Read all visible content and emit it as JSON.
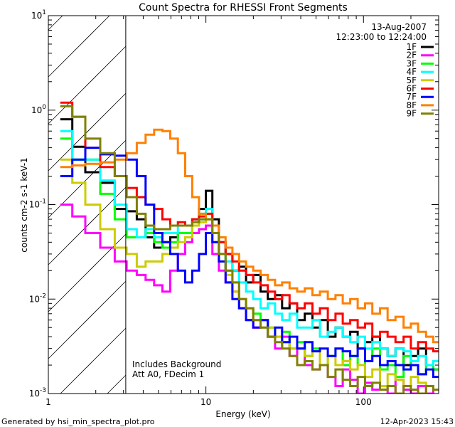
{
  "chart_data": {
    "type": "line",
    "title": "Count Spectra for RHESSI Front Segments",
    "xlabel": "Energy (keV)",
    "ylabel": "counts cm-2 s-1 keV-1",
    "xscale": "log",
    "yscale": "log",
    "xlim": [
      1,
      300
    ],
    "ylim": [
      0.001,
      10
    ],
    "x_tick_labels": [
      "1",
      "10",
      "100"
    ],
    "y_tick_labels": [
      "-3",
      "-2",
      "-1",
      "0",
      "1"
    ],
    "date": "13-Aug-2007",
    "time_range": "12:23:00 to 12:24:00",
    "annotations": [
      "Includes Background",
      "Att A0, FDecim 1"
    ],
    "excluded_region_max_keV": 3.1,
    "legend_placement": "top-right",
    "x": [
      1.3,
      1.55,
      1.9,
      2.4,
      2.9,
      3.4,
      3.9,
      4.4,
      5.0,
      5.6,
      6.3,
      7.0,
      7.8,
      8.6,
      9.5,
      10.5,
      11.5,
      12.7,
      14,
      15.5,
      17,
      19,
      21,
      23.5,
      26,
      29,
      32,
      36,
      40,
      45,
      50,
      56,
      63,
      70,
      78,
      87,
      97,
      108,
      120,
      135,
      150,
      170,
      190,
      210,
      235,
      265,
      290
    ],
    "series": [
      {
        "name": "1F",
        "color": "#000000",
        "values": [
          0.8,
          0.41,
          0.22,
          0.17,
          0.09,
          0.085,
          0.07,
          0.045,
          0.035,
          0.04,
          0.045,
          0.05,
          0.05,
          0.07,
          0.09,
          0.14,
          0.07,
          0.04,
          0.03,
          0.02,
          0.022,
          0.015,
          0.018,
          0.012,
          0.01,
          0.011,
          0.008,
          0.009,
          0.006,
          0.007,
          0.005,
          0.006,
          0.004,
          0.005,
          0.004,
          0.0045,
          0.003,
          0.0035,
          0.004,
          0.003,
          0.0025,
          0.003,
          0.002,
          0.0025,
          0.003,
          0.002,
          0.0018
        ]
      },
      {
        "name": "2F",
        "color": "#ff00ff",
        "values": [
          0.1,
          0.075,
          0.05,
          0.035,
          0.025,
          0.02,
          0.018,
          0.016,
          0.014,
          0.012,
          0.02,
          0.03,
          0.04,
          0.05,
          0.055,
          0.06,
          0.03,
          0.02,
          0.015,
          0.012,
          0.008,
          0.006,
          0.005,
          0.006,
          0.004,
          0.003,
          0.004,
          0.0025,
          0.003,
          0.002,
          0.0018,
          0.002,
          0.0015,
          0.0012,
          0.0018,
          0.0014,
          0.001,
          0.0013,
          0.0011,
          0.0012,
          0.001,
          0.0014,
          0.0011,
          0.001,
          0.0012,
          0.001,
          0.0011
        ]
      },
      {
        "name": "3F",
        "color": "#00ff00",
        "values": [
          0.5,
          0.3,
          0.3,
          0.13,
          0.07,
          0.045,
          0.045,
          0.05,
          0.04,
          0.035,
          0.04,
          0.05,
          0.05,
          0.06,
          0.07,
          0.08,
          0.05,
          0.03,
          0.02,
          0.015,
          0.01,
          0.008,
          0.007,
          0.006,
          0.005,
          0.004,
          0.0045,
          0.003,
          0.0035,
          0.0025,
          0.003,
          0.002,
          0.0025,
          0.003,
          0.002,
          0.0025,
          0.002,
          0.0022,
          0.003,
          0.0018,
          0.002,
          0.0015,
          0.0025,
          0.002,
          0.0016,
          0.002,
          0.0018
        ]
      },
      {
        "name": "4F",
        "color": "#00ffff",
        "values": [
          0.6,
          0.3,
          0.3,
          0.18,
          0.1,
          0.055,
          0.045,
          0.055,
          0.045,
          0.05,
          0.05,
          0.06,
          0.06,
          0.07,
          0.08,
          0.09,
          0.05,
          0.03,
          0.025,
          0.02,
          0.015,
          0.012,
          0.01,
          0.008,
          0.009,
          0.007,
          0.006,
          0.007,
          0.005,
          0.005,
          0.006,
          0.004,
          0.0045,
          0.005,
          0.004,
          0.0035,
          0.004,
          0.003,
          0.0035,
          0.003,
          0.0025,
          0.003,
          0.0028,
          0.0022,
          0.0025,
          0.002,
          0.0022
        ]
      },
      {
        "name": "5F",
        "color": "#cccc00",
        "values": [
          0.3,
          0.17,
          0.1,
          0.055,
          0.035,
          0.03,
          0.022,
          0.025,
          0.025,
          0.03,
          0.035,
          0.04,
          0.045,
          0.06,
          0.065,
          0.07,
          0.04,
          0.025,
          0.018,
          0.012,
          0.01,
          0.008,
          0.006,
          0.005,
          0.005,
          0.004,
          0.0035,
          0.003,
          0.003,
          0.0025,
          0.0028,
          0.002,
          0.0025,
          0.002,
          0.0022,
          0.0018,
          0.002,
          0.0015,
          0.0018,
          0.0012,
          0.0016,
          0.0014,
          0.0012,
          0.0015,
          0.0013,
          0.0012,
          0.0011
        ]
      },
      {
        "name": "6F",
        "color": "#ff0000",
        "values": [
          1.2,
          0.85,
          0.4,
          0.25,
          0.2,
          0.15,
          0.12,
          0.1,
          0.09,
          0.07,
          0.06,
          0.065,
          0.06,
          0.07,
          0.075,
          0.08,
          0.06,
          0.04,
          0.03,
          0.025,
          0.02,
          0.018,
          0.015,
          0.014,
          0.012,
          0.01,
          0.011,
          0.009,
          0.008,
          0.009,
          0.007,
          0.008,
          0.006,
          0.007,
          0.0055,
          0.006,
          0.005,
          0.0055,
          0.004,
          0.0045,
          0.004,
          0.0035,
          0.004,
          0.003,
          0.0035,
          0.003,
          0.0028
        ]
      },
      {
        "name": "7F",
        "color": "#0000ff",
        "values": [
          0.2,
          0.3,
          0.4,
          0.34,
          0.33,
          0.3,
          0.2,
          0.1,
          0.05,
          0.04,
          0.03,
          0.02,
          0.015,
          0.02,
          0.03,
          0.05,
          0.04,
          0.025,
          0.015,
          0.01,
          0.008,
          0.006,
          0.005,
          0.006,
          0.004,
          0.005,
          0.0035,
          0.004,
          0.003,
          0.0035,
          0.0028,
          0.003,
          0.0025,
          0.003,
          0.0028,
          0.0025,
          0.003,
          0.0022,
          0.0025,
          0.002,
          0.0022,
          0.002,
          0.0018,
          0.002,
          0.0016,
          0.0018,
          0.0015
        ]
      },
      {
        "name": "8F",
        "color": "#ff8000",
        "values": [
          0.25,
          0.26,
          0.27,
          0.28,
          0.3,
          0.35,
          0.45,
          0.55,
          0.62,
          0.6,
          0.5,
          0.35,
          0.2,
          0.12,
          0.08,
          0.07,
          0.06,
          0.045,
          0.035,
          0.03,
          0.025,
          0.022,
          0.02,
          0.018,
          0.016,
          0.014,
          0.015,
          0.013,
          0.012,
          0.013,
          0.011,
          0.012,
          0.01,
          0.011,
          0.009,
          0.01,
          0.008,
          0.009,
          0.007,
          0.008,
          0.006,
          0.0065,
          0.005,
          0.0055,
          0.0045,
          0.004,
          0.0035
        ]
      },
      {
        "name": "9F",
        "color": "#808000",
        "values": [
          1.1,
          0.85,
          0.5,
          0.35,
          0.2,
          0.12,
          0.08,
          0.06,
          0.055,
          0.055,
          0.06,
          0.06,
          0.06,
          0.065,
          0.07,
          0.07,
          0.05,
          0.03,
          0.02,
          0.015,
          0.01,
          0.008,
          0.006,
          0.005,
          0.004,
          0.0035,
          0.003,
          0.0025,
          0.002,
          0.0022,
          0.0018,
          0.002,
          0.0015,
          0.0018,
          0.0014,
          0.0012,
          0.0015,
          0.0012,
          0.0013,
          0.0011,
          0.0012,
          0.001,
          0.0012,
          0.0011,
          0.001,
          0.0012,
          0.0011
        ]
      }
    ]
  },
  "footer": {
    "generated_by": "Generated by hsi_min_spectra_plot.pro",
    "timestamp": "12-Apr-2023 15:43"
  }
}
